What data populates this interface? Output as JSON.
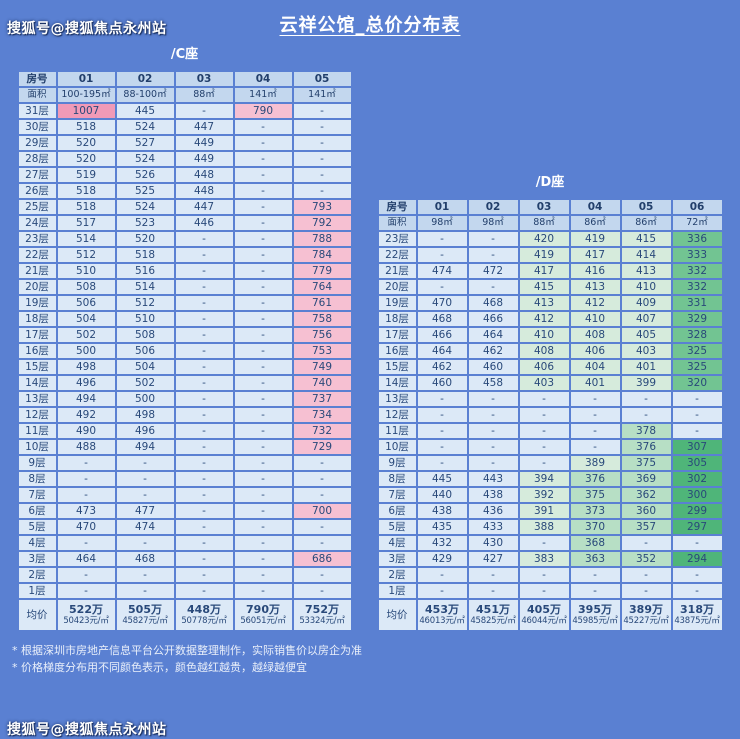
{
  "title": "云祥公馆_总价分布表",
  "watermarks": {
    "top": "搜狐号@搜狐焦点永州站",
    "bottom": "搜狐号@搜狐焦点永州站"
  },
  "legend": {
    "room": "房号",
    "area": "面积",
    "avg": "均价"
  },
  "notes": [
    "* 根据深圳市房地产信息平台公开数据整理制作，实际销售价以房企为准",
    "* 价格梯度分布用不同颜色表示，颜色越红越贵，越绿越便宜"
  ],
  "palette": {
    "background": "#5a80d2",
    "cell": "#dce9f7",
    "header_cell": "#c3d7ee",
    "text": "#29497a",
    "pink_strong": "#f19ab7",
    "pink": "#f6c0d2",
    "green_pale": "#d6ebdc",
    "green_light": "#b7dfc5",
    "green_mid": "#72c492",
    "green_deep": "#4fb579"
  },
  "color_rules": [
    {
      "min": 1000,
      "color": "pink_strong"
    },
    {
      "min": 680,
      "color": "pink"
    },
    {
      "min": 425,
      "color": "cell"
    },
    {
      "min": 381,
      "color": "green_pale"
    },
    {
      "min": 341,
      "color": "green_light"
    },
    {
      "min": 311,
      "color": "green_mid"
    },
    {
      "min": 0,
      "color": "green_deep"
    }
  ],
  "chart_data": [
    {
      "type": "heatmap",
      "title": "/C座",
      "columns": [
        "01",
        "02",
        "03",
        "04",
        "05"
      ],
      "areas": [
        "100-195㎡",
        "88-100㎡",
        "88㎡",
        "141㎡",
        "141㎡"
      ],
      "rows": [
        {
          "floor": "31层",
          "values": [
            "1007",
            "445",
            "-",
            "790",
            "-"
          ]
        },
        {
          "floor": "30层",
          "values": [
            "518",
            "524",
            "447",
            "-",
            "-"
          ]
        },
        {
          "floor": "29层",
          "values": [
            "520",
            "527",
            "449",
            "-",
            "-"
          ]
        },
        {
          "floor": "28层",
          "values": [
            "520",
            "524",
            "449",
            "-",
            "-"
          ]
        },
        {
          "floor": "27层",
          "values": [
            "519",
            "526",
            "448",
            "-",
            "-"
          ]
        },
        {
          "floor": "26层",
          "values": [
            "518",
            "525",
            "448",
            "-",
            "-"
          ]
        },
        {
          "floor": "25层",
          "values": [
            "518",
            "524",
            "447",
            "-",
            "793"
          ]
        },
        {
          "floor": "24层",
          "values": [
            "517",
            "523",
            "446",
            "-",
            "792"
          ]
        },
        {
          "floor": "23层",
          "values": [
            "514",
            "520",
            "-",
            "-",
            "788"
          ]
        },
        {
          "floor": "22层",
          "values": [
            "512",
            "518",
            "-",
            "-",
            "784"
          ]
        },
        {
          "floor": "21层",
          "values": [
            "510",
            "516",
            "-",
            "-",
            "779"
          ]
        },
        {
          "floor": "20层",
          "values": [
            "508",
            "514",
            "-",
            "-",
            "764"
          ]
        },
        {
          "floor": "19层",
          "values": [
            "506",
            "512",
            "-",
            "-",
            "761"
          ]
        },
        {
          "floor": "18层",
          "values": [
            "504",
            "510",
            "-",
            "-",
            "758"
          ]
        },
        {
          "floor": "17层",
          "values": [
            "502",
            "508",
            "-",
            "-",
            "756"
          ]
        },
        {
          "floor": "16层",
          "values": [
            "500",
            "506",
            "-",
            "-",
            "753"
          ]
        },
        {
          "floor": "15层",
          "values": [
            "498",
            "504",
            "-",
            "-",
            "749"
          ]
        },
        {
          "floor": "14层",
          "values": [
            "496",
            "502",
            "-",
            "-",
            "740"
          ]
        },
        {
          "floor": "13层",
          "values": [
            "494",
            "500",
            "-",
            "-",
            "737"
          ]
        },
        {
          "floor": "12层",
          "values": [
            "492",
            "498",
            "-",
            "-",
            "734"
          ]
        },
        {
          "floor": "11层",
          "values": [
            "490",
            "496",
            "-",
            "-",
            "732"
          ]
        },
        {
          "floor": "10层",
          "values": [
            "488",
            "494",
            "-",
            "-",
            "729"
          ]
        },
        {
          "floor": "9层",
          "values": [
            "-",
            "-",
            "-",
            "-",
            "-"
          ]
        },
        {
          "floor": "8层",
          "values": [
            "-",
            "-",
            "-",
            "-",
            "-"
          ]
        },
        {
          "floor": "7层",
          "values": [
            "-",
            "-",
            "-",
            "-",
            "-"
          ]
        },
        {
          "floor": "6层",
          "values": [
            "473",
            "477",
            "-",
            "-",
            "700"
          ]
        },
        {
          "floor": "5层",
          "values": [
            "470",
            "474",
            "-",
            "-",
            "-"
          ]
        },
        {
          "floor": "4层",
          "values": [
            "-",
            "-",
            "-",
            "-",
            "-"
          ]
        },
        {
          "floor": "3层",
          "values": [
            "464",
            "468",
            "-",
            "-",
            "686"
          ]
        },
        {
          "floor": "2层",
          "values": [
            "-",
            "-",
            "-",
            "-",
            "-"
          ]
        },
        {
          "floor": "1层",
          "values": [
            "-",
            "-",
            "-",
            "-",
            "-"
          ]
        }
      ],
      "averages": [
        {
          "total": "522万",
          "unit": "50423元/㎡"
        },
        {
          "total": "505万",
          "unit": "45827元/㎡"
        },
        {
          "total": "448万",
          "unit": "50778元/㎡"
        },
        {
          "total": "790万",
          "unit": "56051元/㎡"
        },
        {
          "total": "752万",
          "unit": "53324元/㎡"
        }
      ]
    },
    {
      "type": "heatmap",
      "title": "/D座",
      "columns": [
        "01",
        "02",
        "03",
        "04",
        "05",
        "06"
      ],
      "areas": [
        "98㎡",
        "98㎡",
        "88㎡",
        "86㎡",
        "86㎡",
        "72㎡"
      ],
      "rows": [
        {
          "floor": "23层",
          "values": [
            "-",
            "-",
            "420",
            "419",
            "415",
            "336"
          ]
        },
        {
          "floor": "22层",
          "values": [
            "-",
            "-",
            "419",
            "417",
            "414",
            "333"
          ]
        },
        {
          "floor": "21层",
          "values": [
            "474",
            "472",
            "417",
            "416",
            "413",
            "332"
          ]
        },
        {
          "floor": "20层",
          "values": [
            "-",
            "-",
            "415",
            "413",
            "410",
            "332"
          ]
        },
        {
          "floor": "19层",
          "values": [
            "470",
            "468",
            "413",
            "412",
            "409",
            "331"
          ]
        },
        {
          "floor": "18层",
          "values": [
            "468",
            "466",
            "412",
            "410",
            "407",
            "329"
          ]
        },
        {
          "floor": "17层",
          "values": [
            "466",
            "464",
            "410",
            "408",
            "405",
            "328"
          ]
        },
        {
          "floor": "16层",
          "values": [
            "464",
            "462",
            "408",
            "406",
            "403",
            "325"
          ]
        },
        {
          "floor": "15层",
          "values": [
            "462",
            "460",
            "406",
            "404",
            "401",
            "325"
          ]
        },
        {
          "floor": "14层",
          "values": [
            "460",
            "458",
            "403",
            "401",
            "399",
            "320"
          ]
        },
        {
          "floor": "13层",
          "values": [
            "-",
            "-",
            "-",
            "-",
            "-",
            "-"
          ]
        },
        {
          "floor": "12层",
          "values": [
            "-",
            "-",
            "-",
            "-",
            "-",
            "-"
          ]
        },
        {
          "floor": "11层",
          "values": [
            "-",
            "-",
            "-",
            "-",
            "378",
            "-"
          ]
        },
        {
          "floor": "10层",
          "values": [
            "-",
            "-",
            "-",
            "-",
            "376",
            "307"
          ]
        },
        {
          "floor": "9层",
          "values": [
            "-",
            "-",
            "-",
            "389",
            "375",
            "305"
          ]
        },
        {
          "floor": "8层",
          "values": [
            "445",
            "443",
            "394",
            "376",
            "369",
            "302"
          ]
        },
        {
          "floor": "7层",
          "values": [
            "440",
            "438",
            "392",
            "375",
            "362",
            "300"
          ]
        },
        {
          "floor": "6层",
          "values": [
            "438",
            "436",
            "391",
            "373",
            "360",
            "299"
          ]
        },
        {
          "floor": "5层",
          "values": [
            "435",
            "433",
            "388",
            "370",
            "357",
            "297"
          ]
        },
        {
          "floor": "4层",
          "values": [
            "432",
            "430",
            "-",
            "368",
            "-",
            "-"
          ]
        },
        {
          "floor": "3层",
          "values": [
            "429",
            "427",
            "383",
            "363",
            "352",
            "294"
          ]
        },
        {
          "floor": "2层",
          "values": [
            "-",
            "-",
            "-",
            "-",
            "-",
            "-"
          ]
        },
        {
          "floor": "1层",
          "values": [
            "-",
            "-",
            "-",
            "-",
            "-",
            "-"
          ]
        }
      ],
      "averages": [
        {
          "total": "453万",
          "unit": "46013元/㎡"
        },
        {
          "total": "451万",
          "unit": "45825元/㎡"
        },
        {
          "total": "405万",
          "unit": "46044元/㎡"
        },
        {
          "total": "395万",
          "unit": "45985元/㎡"
        },
        {
          "total": "389万",
          "unit": "45227元/㎡"
        },
        {
          "total": "318万",
          "unit": "43875元/㎡"
        }
      ]
    }
  ]
}
